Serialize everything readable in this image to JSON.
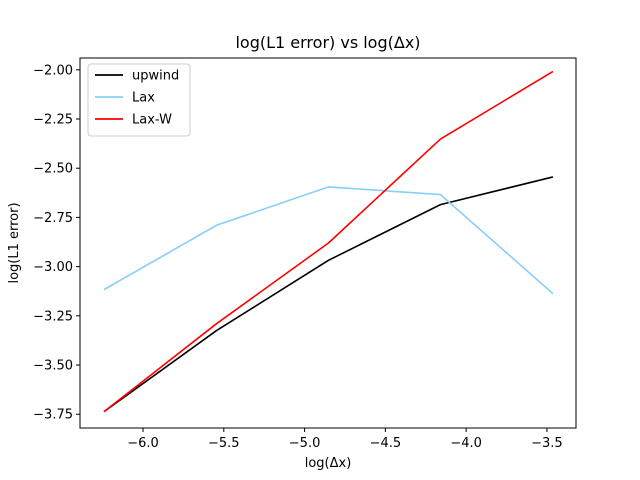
{
  "chart_data": {
    "type": "line",
    "title": "log(L1 error) vs log(Δx)",
    "xlabel": "log(Δx)",
    "ylabel": "log(L1 error)",
    "xlim": [
      -6.39,
      -3.32
    ],
    "ylim": [
      -3.82,
      -1.94
    ],
    "x_ticks": [
      -6.0,
      -5.5,
      -5.0,
      -4.5,
      -4.0,
      -3.5
    ],
    "x_tick_labels": [
      "−6.0",
      "−5.5",
      "−5.0",
      "−4.5",
      "−4.0",
      "−3.5"
    ],
    "y_ticks": [
      -3.75,
      -3.5,
      -3.25,
      -3.0,
      -2.75,
      -2.5,
      -2.25,
      -2.0
    ],
    "y_tick_labels": [
      "−3.75",
      "−3.50",
      "−3.25",
      "−3.00",
      "−2.75",
      "−2.50",
      "−2.25",
      "−2.00"
    ],
    "x": [
      -6.238,
      -5.545,
      -4.852,
      -4.159,
      -3.466
    ],
    "series": [
      {
        "name": "upwind",
        "color": "#000000",
        "values": [
          -3.735,
          -3.325,
          -2.968,
          -2.685,
          -2.545
        ]
      },
      {
        "name": "Lax",
        "color": "#87CEFA",
        "values": [
          -3.115,
          -2.79,
          -2.595,
          -2.634,
          -3.135
        ]
      },
      {
        "name": "Lax-W",
        "color": "#FF0000",
        "values": [
          -3.735,
          -3.29,
          -2.88,
          -2.352,
          -2.01
        ]
      }
    ],
    "grid": false,
    "legend_position": "top-left"
  }
}
